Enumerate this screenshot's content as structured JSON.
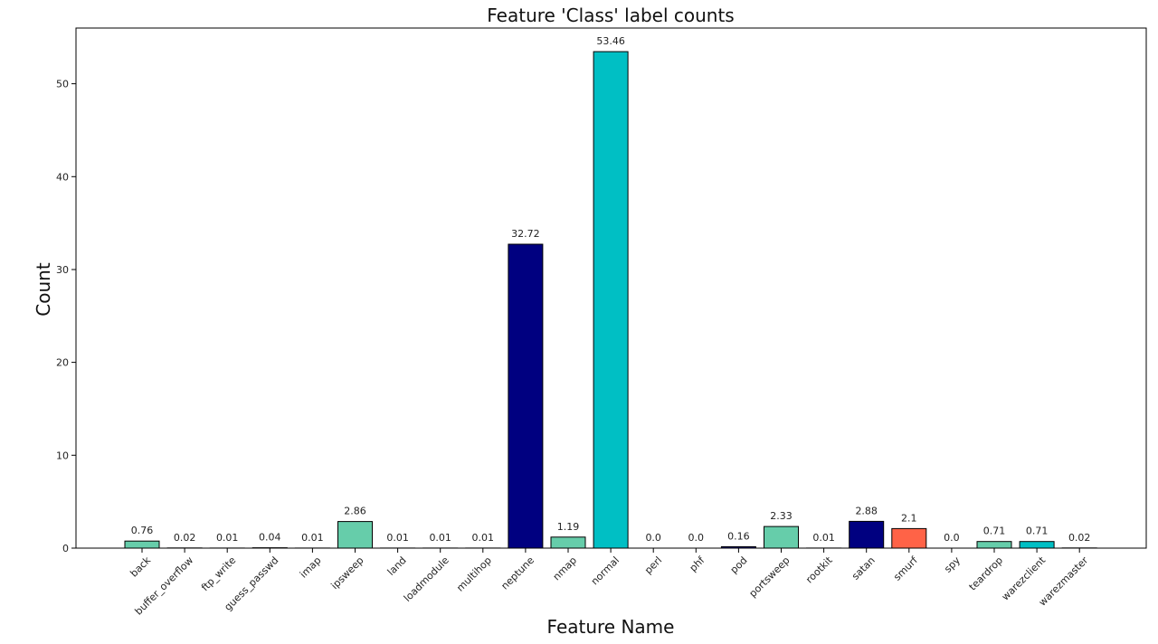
{
  "chart_data": {
    "type": "bar",
    "title": "Feature 'Class' label counts",
    "xlabel": "Feature Name",
    "ylabel": "Count",
    "ylim": [
      0,
      56
    ],
    "yticks": [
      0,
      10,
      20,
      30,
      40,
      50
    ],
    "grid": false,
    "categories": [
      "back",
      "buffer_overflow",
      "ftp_write",
      "guess_passwd",
      "imap",
      "ipsweep",
      "land",
      "loadmodule",
      "multihop",
      "neptune",
      "nmap",
      "normal",
      "perl",
      "phf",
      "pod",
      "portsweep",
      "rootkit",
      "satan",
      "smurf",
      "spy",
      "teardrop",
      "warezclient",
      "warezmaster"
    ],
    "values": [
      0.76,
      0.02,
      0.01,
      0.04,
      0.01,
      2.86,
      0.01,
      0.01,
      0.01,
      32.72,
      1.19,
      53.46,
      0.0,
      0.0,
      0.16,
      2.33,
      0.01,
      2.88,
      2.1,
      0.0,
      0.71,
      0.71,
      0.02
    ],
    "value_labels": [
      "0.76",
      "0.02",
      "0.01",
      "0.04",
      "0.01",
      "2.86",
      "0.01",
      "0.01",
      "0.01",
      "32.72",
      "1.19",
      "53.46",
      "0.0",
      "0.0",
      "0.16",
      "2.33",
      "0.01",
      "2.88",
      "2.1",
      "0.0",
      "0.71",
      "0.71",
      "0.02"
    ],
    "colors": [
      "#66cdaa",
      "#000080",
      "#00bfc4",
      "#ff6347",
      "#66cdaa",
      "#66cdaa",
      "#000080",
      "#00bfc4",
      "#ff6347",
      "#000080",
      "#66cdaa",
      "#00bfc4",
      "#000080",
      "#ff6347",
      "#000080",
      "#66cdaa",
      "#00bfc4",
      "#000080",
      "#ff6347",
      "#000080",
      "#66cdaa",
      "#00bfc4",
      "#000080"
    ],
    "edge_color": "#000000"
  }
}
